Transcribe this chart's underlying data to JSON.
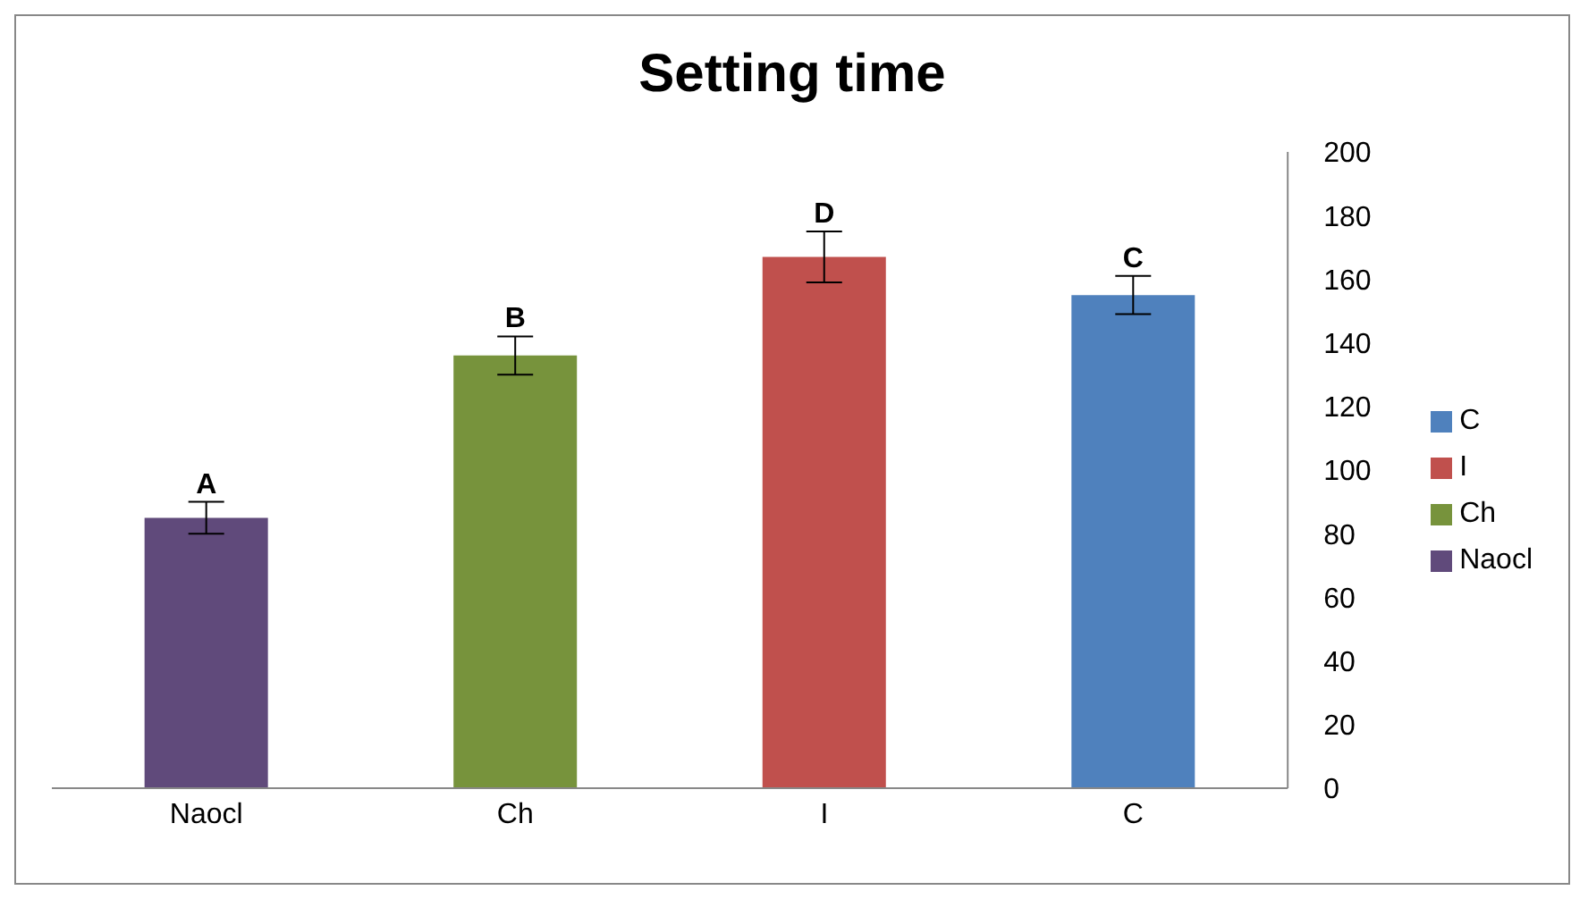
{
  "chart_data": {
    "type": "bar",
    "title": "Setting time",
    "categories": [
      "Naocl",
      "Ch",
      "I",
      "C"
    ],
    "series": [
      {
        "name": "C",
        "color": "#4f81bd",
        "values": [
          null,
          null,
          null,
          155
        ],
        "errors": [
          null,
          null,
          null,
          6
        ]
      },
      {
        "name": "I",
        "color": "#c0504d",
        "values": [
          null,
          null,
          167,
          null
        ],
        "errors": [
          null,
          null,
          8,
          null
        ]
      },
      {
        "name": "Ch",
        "color": "#77933c",
        "values": [
          null,
          136,
          null,
          null
        ],
        "errors": [
          null,
          6,
          null,
          null
        ]
      },
      {
        "name": "Naocl",
        "color": "#604a7b",
        "values": [
          85,
          null,
          null,
          null
        ],
        "errors": [
          5,
          null,
          null,
          null
        ]
      }
    ],
    "annotations": [
      {
        "text": "A",
        "x": "Naocl",
        "y": 90
      },
      {
        "text": "B",
        "x": "Ch",
        "y": 142
      },
      {
        "text": "D",
        "x": "I",
        "y": 175
      },
      {
        "text": "C",
        "x": "C",
        "y": 161
      }
    ],
    "ylim": [
      0,
      200
    ],
    "yticks": [
      0,
      20,
      40,
      60,
      80,
      100,
      120,
      140,
      160,
      180,
      200
    ],
    "grid": false,
    "legend": "right"
  }
}
